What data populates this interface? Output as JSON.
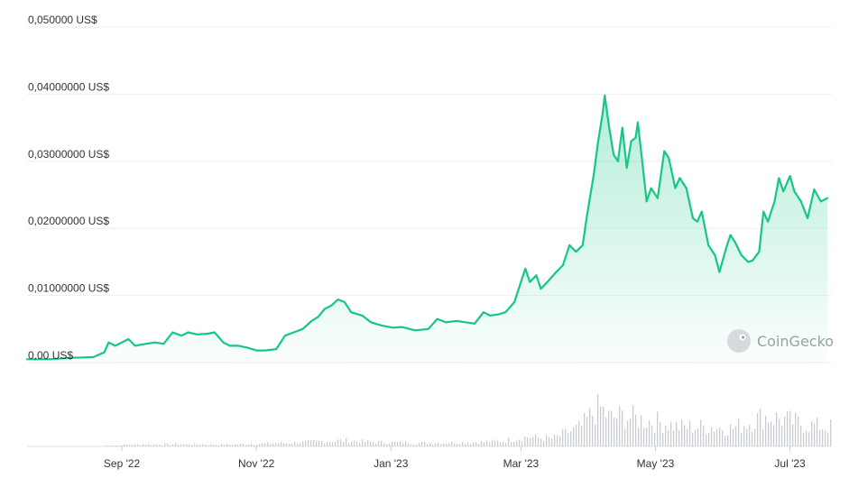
{
  "chart_data": {
    "type": "area",
    "title": "",
    "xlabel": "",
    "ylabel": "",
    "y_ticks": [
      {
        "value": 0,
        "label": "0,00 US$"
      },
      {
        "value": 0.01,
        "label": "0,01000000 US$"
      },
      {
        "value": 0.02,
        "label": "0,02000000 US$"
      },
      {
        "value": 0.03,
        "label": "0,03000000 US$"
      },
      {
        "value": 0.04,
        "label": "0,04000000 US$"
      },
      {
        "value": 0.05,
        "label": "0,050000 US$"
      }
    ],
    "ylim": [
      0,
      0.05
    ],
    "x_range": [
      "2022-07-20",
      "2023-07-20"
    ],
    "x_ticks": [
      {
        "date": "2022-09-01",
        "label": "Sep '22"
      },
      {
        "date": "2022-11-01",
        "label": "Nov '22"
      },
      {
        "date": "2023-01-01",
        "label": "Jan '23"
      },
      {
        "date": "2023-03-01",
        "label": "Mar '23"
      },
      {
        "date": "2023-05-01",
        "label": "May '23"
      },
      {
        "date": "2023-07-01",
        "label": "Jul '23"
      }
    ],
    "series": [
      {
        "color": "#16c784",
        "points": [
          [
            "2022-07-20",
            0.0005
          ],
          [
            "2022-07-30",
            0.0005
          ],
          [
            "2022-08-09",
            0.0007
          ],
          [
            "2022-08-19",
            0.0008
          ],
          [
            "2022-08-24",
            0.0015
          ],
          [
            "2022-08-26",
            0.003
          ],
          [
            "2022-08-29",
            0.0025
          ],
          [
            "2022-09-01",
            0.003
          ],
          [
            "2022-09-04",
            0.0035
          ],
          [
            "2022-09-07",
            0.0025
          ],
          [
            "2022-09-12",
            0.0028
          ],
          [
            "2022-09-16",
            0.003
          ],
          [
            "2022-09-20",
            0.0028
          ],
          [
            "2022-09-24",
            0.0045
          ],
          [
            "2022-09-28",
            0.004
          ],
          [
            "2022-10-01",
            0.0045
          ],
          [
            "2022-10-05",
            0.0042
          ],
          [
            "2022-10-10",
            0.0043
          ],
          [
            "2022-10-13",
            0.0045
          ],
          [
            "2022-10-17",
            0.003
          ],
          [
            "2022-10-20",
            0.0025
          ],
          [
            "2022-10-24",
            0.0025
          ],
          [
            "2022-10-28",
            0.0022
          ],
          [
            "2022-11-01",
            0.0018
          ],
          [
            "2022-11-05",
            0.0018
          ],
          [
            "2022-11-10",
            0.002
          ],
          [
            "2022-11-14",
            0.004
          ],
          [
            "2022-11-18",
            0.0045
          ],
          [
            "2022-11-22",
            0.005
          ],
          [
            "2022-11-26",
            0.0062
          ],
          [
            "2022-11-29",
            0.0068
          ],
          [
            "2022-12-02",
            0.008
          ],
          [
            "2022-12-05",
            0.0085
          ],
          [
            "2022-12-08",
            0.0094
          ],
          [
            "2022-12-11",
            0.009
          ],
          [
            "2022-12-14",
            0.0075
          ],
          [
            "2022-12-19",
            0.007
          ],
          [
            "2022-12-23",
            0.006
          ],
          [
            "2022-12-28",
            0.0055
          ],
          [
            "2023-01-02",
            0.0052
          ],
          [
            "2023-01-06",
            0.0053
          ],
          [
            "2023-01-12",
            0.0048
          ],
          [
            "2023-01-18",
            0.005
          ],
          [
            "2023-01-22",
            0.0065
          ],
          [
            "2023-01-26",
            0.006
          ],
          [
            "2023-01-31",
            0.0062
          ],
          [
            "2023-02-04",
            0.006
          ],
          [
            "2023-02-08",
            0.0058
          ],
          [
            "2023-02-12",
            0.0075
          ],
          [
            "2023-02-15",
            0.007
          ],
          [
            "2023-02-19",
            0.0072
          ],
          [
            "2023-02-22",
            0.0075
          ],
          [
            "2023-02-26",
            0.009
          ],
          [
            "2023-03-01",
            0.012
          ],
          [
            "2023-03-03",
            0.014
          ],
          [
            "2023-03-05",
            0.012
          ],
          [
            "2023-03-08",
            0.013
          ],
          [
            "2023-03-10",
            0.011
          ],
          [
            "2023-03-13",
            0.012
          ],
          [
            "2023-03-17",
            0.0135
          ],
          [
            "2023-03-20",
            0.0145
          ],
          [
            "2023-03-23",
            0.0175
          ],
          [
            "2023-03-26",
            0.0165
          ],
          [
            "2023-03-29",
            0.0175
          ],
          [
            "2023-03-31",
            0.022
          ],
          [
            "2023-04-03",
            0.028
          ],
          [
            "2023-04-05",
            0.033
          ],
          [
            "2023-04-07",
            0.037
          ],
          [
            "2023-04-08",
            0.0398
          ],
          [
            "2023-04-10",
            0.035
          ],
          [
            "2023-04-12",
            0.031
          ],
          [
            "2023-04-14",
            0.03
          ],
          [
            "2023-04-16",
            0.035
          ],
          [
            "2023-04-18",
            0.029
          ],
          [
            "2023-04-20",
            0.033
          ],
          [
            "2023-04-22",
            0.0335
          ],
          [
            "2023-04-23",
            0.0358
          ],
          [
            "2023-04-25",
            0.03
          ],
          [
            "2023-04-27",
            0.024
          ],
          [
            "2023-04-29",
            0.026
          ],
          [
            "2023-05-02",
            0.0245
          ],
          [
            "2023-05-05",
            0.0315
          ],
          [
            "2023-05-07",
            0.0305
          ],
          [
            "2023-05-10",
            0.026
          ],
          [
            "2023-05-12",
            0.0275
          ],
          [
            "2023-05-15",
            0.026
          ],
          [
            "2023-05-18",
            0.0215
          ],
          [
            "2023-05-20",
            0.021
          ],
          [
            "2023-05-22",
            0.0225
          ],
          [
            "2023-05-25",
            0.0175
          ],
          [
            "2023-05-28",
            0.016
          ],
          [
            "2023-05-30",
            0.0135
          ],
          [
            "2023-06-02",
            0.017
          ],
          [
            "2023-06-04",
            0.019
          ],
          [
            "2023-06-06",
            0.018
          ],
          [
            "2023-06-09",
            0.016
          ],
          [
            "2023-06-12",
            0.015
          ],
          [
            "2023-06-14",
            0.0152
          ],
          [
            "2023-06-17",
            0.0165
          ],
          [
            "2023-06-19",
            0.0225
          ],
          [
            "2023-06-21",
            0.021
          ],
          [
            "2023-06-24",
            0.024
          ],
          [
            "2023-06-26",
            0.0275
          ],
          [
            "2023-06-28",
            0.0255
          ],
          [
            "2023-07-01",
            0.0278
          ],
          [
            "2023-07-03",
            0.0255
          ],
          [
            "2023-07-06",
            0.024
          ],
          [
            "2023-07-09",
            0.0215
          ],
          [
            "2023-07-12",
            0.0258
          ],
          [
            "2023-07-15",
            0.024
          ],
          [
            "2023-07-18",
            0.0245
          ]
        ]
      }
    ],
    "volume_bars": [
      [
        "2022-09-01",
        0.04
      ],
      [
        "2022-09-15",
        0.05
      ],
      [
        "2022-10-01",
        0.05
      ],
      [
        "2022-10-15",
        0.04
      ],
      [
        "2022-11-15",
        0.08
      ],
      [
        "2022-12-01",
        0.12
      ],
      [
        "2022-12-10",
        0.14
      ],
      [
        "2022-12-25",
        0.1
      ],
      [
        "2023-01-15",
        0.08
      ],
      [
        "2023-02-01",
        0.09
      ],
      [
        "2023-02-20",
        0.12
      ],
      [
        "2023-03-03",
        0.22
      ],
      [
        "2023-03-15",
        0.18
      ],
      [
        "2023-03-28",
        0.45
      ],
      [
        "2023-04-05",
        0.92
      ],
      [
        "2023-04-10",
        0.65
      ],
      [
        "2023-04-16",
        0.7
      ],
      [
        "2023-04-24",
        0.62
      ],
      [
        "2023-05-04",
        0.55
      ],
      [
        "2023-05-12",
        0.45
      ],
      [
        "2023-05-25",
        0.45
      ],
      [
        "2023-06-05",
        0.42
      ],
      [
        "2023-06-19",
        0.7
      ],
      [
        "2023-06-28",
        0.62
      ],
      [
        "2023-07-08",
        0.5
      ],
      [
        "2023-07-17",
        0.45
      ]
    ],
    "grid": true,
    "legend": "none",
    "watermark": "CoinGecko"
  }
}
